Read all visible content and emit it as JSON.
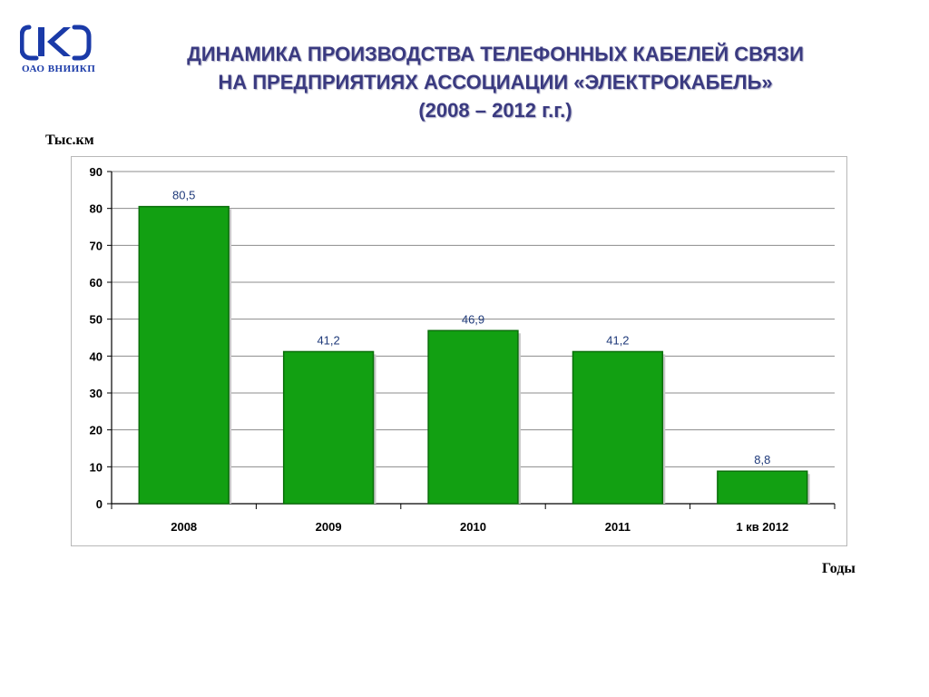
{
  "header": {
    "org_name": "ОАО  ВНИИКП",
    "title_line1": "ДИНАМИКА ПРОИЗВОДСТВА ТЕЛЕФОННЫХ КАБЕЛЕЙ СВЯЗИ",
    "title_line2": "НА ПРЕДПРИЯТИЯХ АССОЦИАЦИИ «ЭЛЕКТРОКАБЕЛЬ»",
    "title_line3": "(2008 – 2012 г.г.)"
  },
  "colors": {
    "bar": "#12a012",
    "bar_edge": "#0a6e0a",
    "title": "#3a3a80",
    "logo": "#1a3aa8",
    "value_label": "#1f3a7a",
    "grid": "#8c8c8c"
  },
  "chart_data": {
    "type": "bar",
    "categories": [
      "2008",
      "2009",
      "2010",
      "2011",
      "1 кв 2012"
    ],
    "values": [
      80.5,
      41.2,
      46.9,
      41.2,
      8.8
    ],
    "value_labels": [
      "80,5",
      "41,2",
      "46,9",
      "41,2",
      "8,8"
    ],
    "ylabel": "Тыс.км",
    "xlabel": "Годы",
    "ylim": [
      0,
      90
    ],
    "yticks": [
      0,
      10,
      20,
      30,
      40,
      50,
      60,
      70,
      80,
      90
    ],
    "grid": true,
    "legend": "none"
  }
}
